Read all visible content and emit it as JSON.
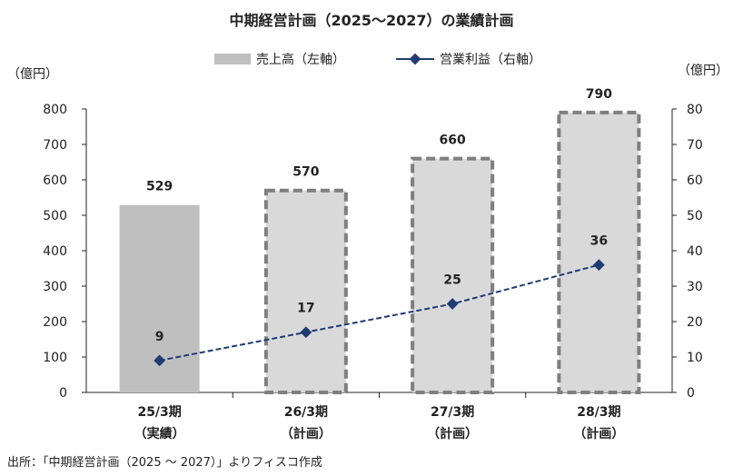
{
  "chart_data": {
    "type": "bar",
    "title": "中期経営計画（2025～2027）の業績計画",
    "categories": [
      {
        "line1": "25/3期",
        "line2": "（実績）"
      },
      {
        "line1": "26/3期",
        "line2": "（計画）"
      },
      {
        "line1": "27/3期",
        "line2": "（計画）"
      },
      {
        "line1": "28/3期",
        "line2": "（計画）"
      }
    ],
    "series": [
      {
        "name": "売上高（左軸）",
        "type": "bar",
        "axis": "left",
        "values": [
          529,
          570,
          660,
          790
        ],
        "labels": [
          "529",
          "570",
          "660",
          "790"
        ],
        "planned": [
          false,
          true,
          true,
          true
        ],
        "color": "#bfbfbf",
        "planned_fill": "#d9d9d9",
        "planned_border": "#7f7f7f"
      },
      {
        "name": "営業利益（右軸）",
        "type": "line",
        "axis": "right",
        "values": [
          9,
          17,
          25,
          36
        ],
        "labels": [
          "9",
          "17",
          "25",
          "36"
        ],
        "color": "#1f3b73"
      }
    ],
    "y_left": {
      "unit": "（億円）",
      "min": 0,
      "max": 800,
      "ticks": [
        0,
        100,
        200,
        300,
        400,
        500,
        600,
        700,
        800
      ]
    },
    "y_right": {
      "unit": "（億円）",
      "min": 0,
      "max": 80,
      "ticks": [
        0,
        10,
        20,
        30,
        40,
        50,
        60,
        70,
        80
      ]
    },
    "legend_position": "top-center",
    "grid": false
  },
  "source": "出所：「中期経営計画（2025 ～ 2027）」よりフィスコ作成"
}
